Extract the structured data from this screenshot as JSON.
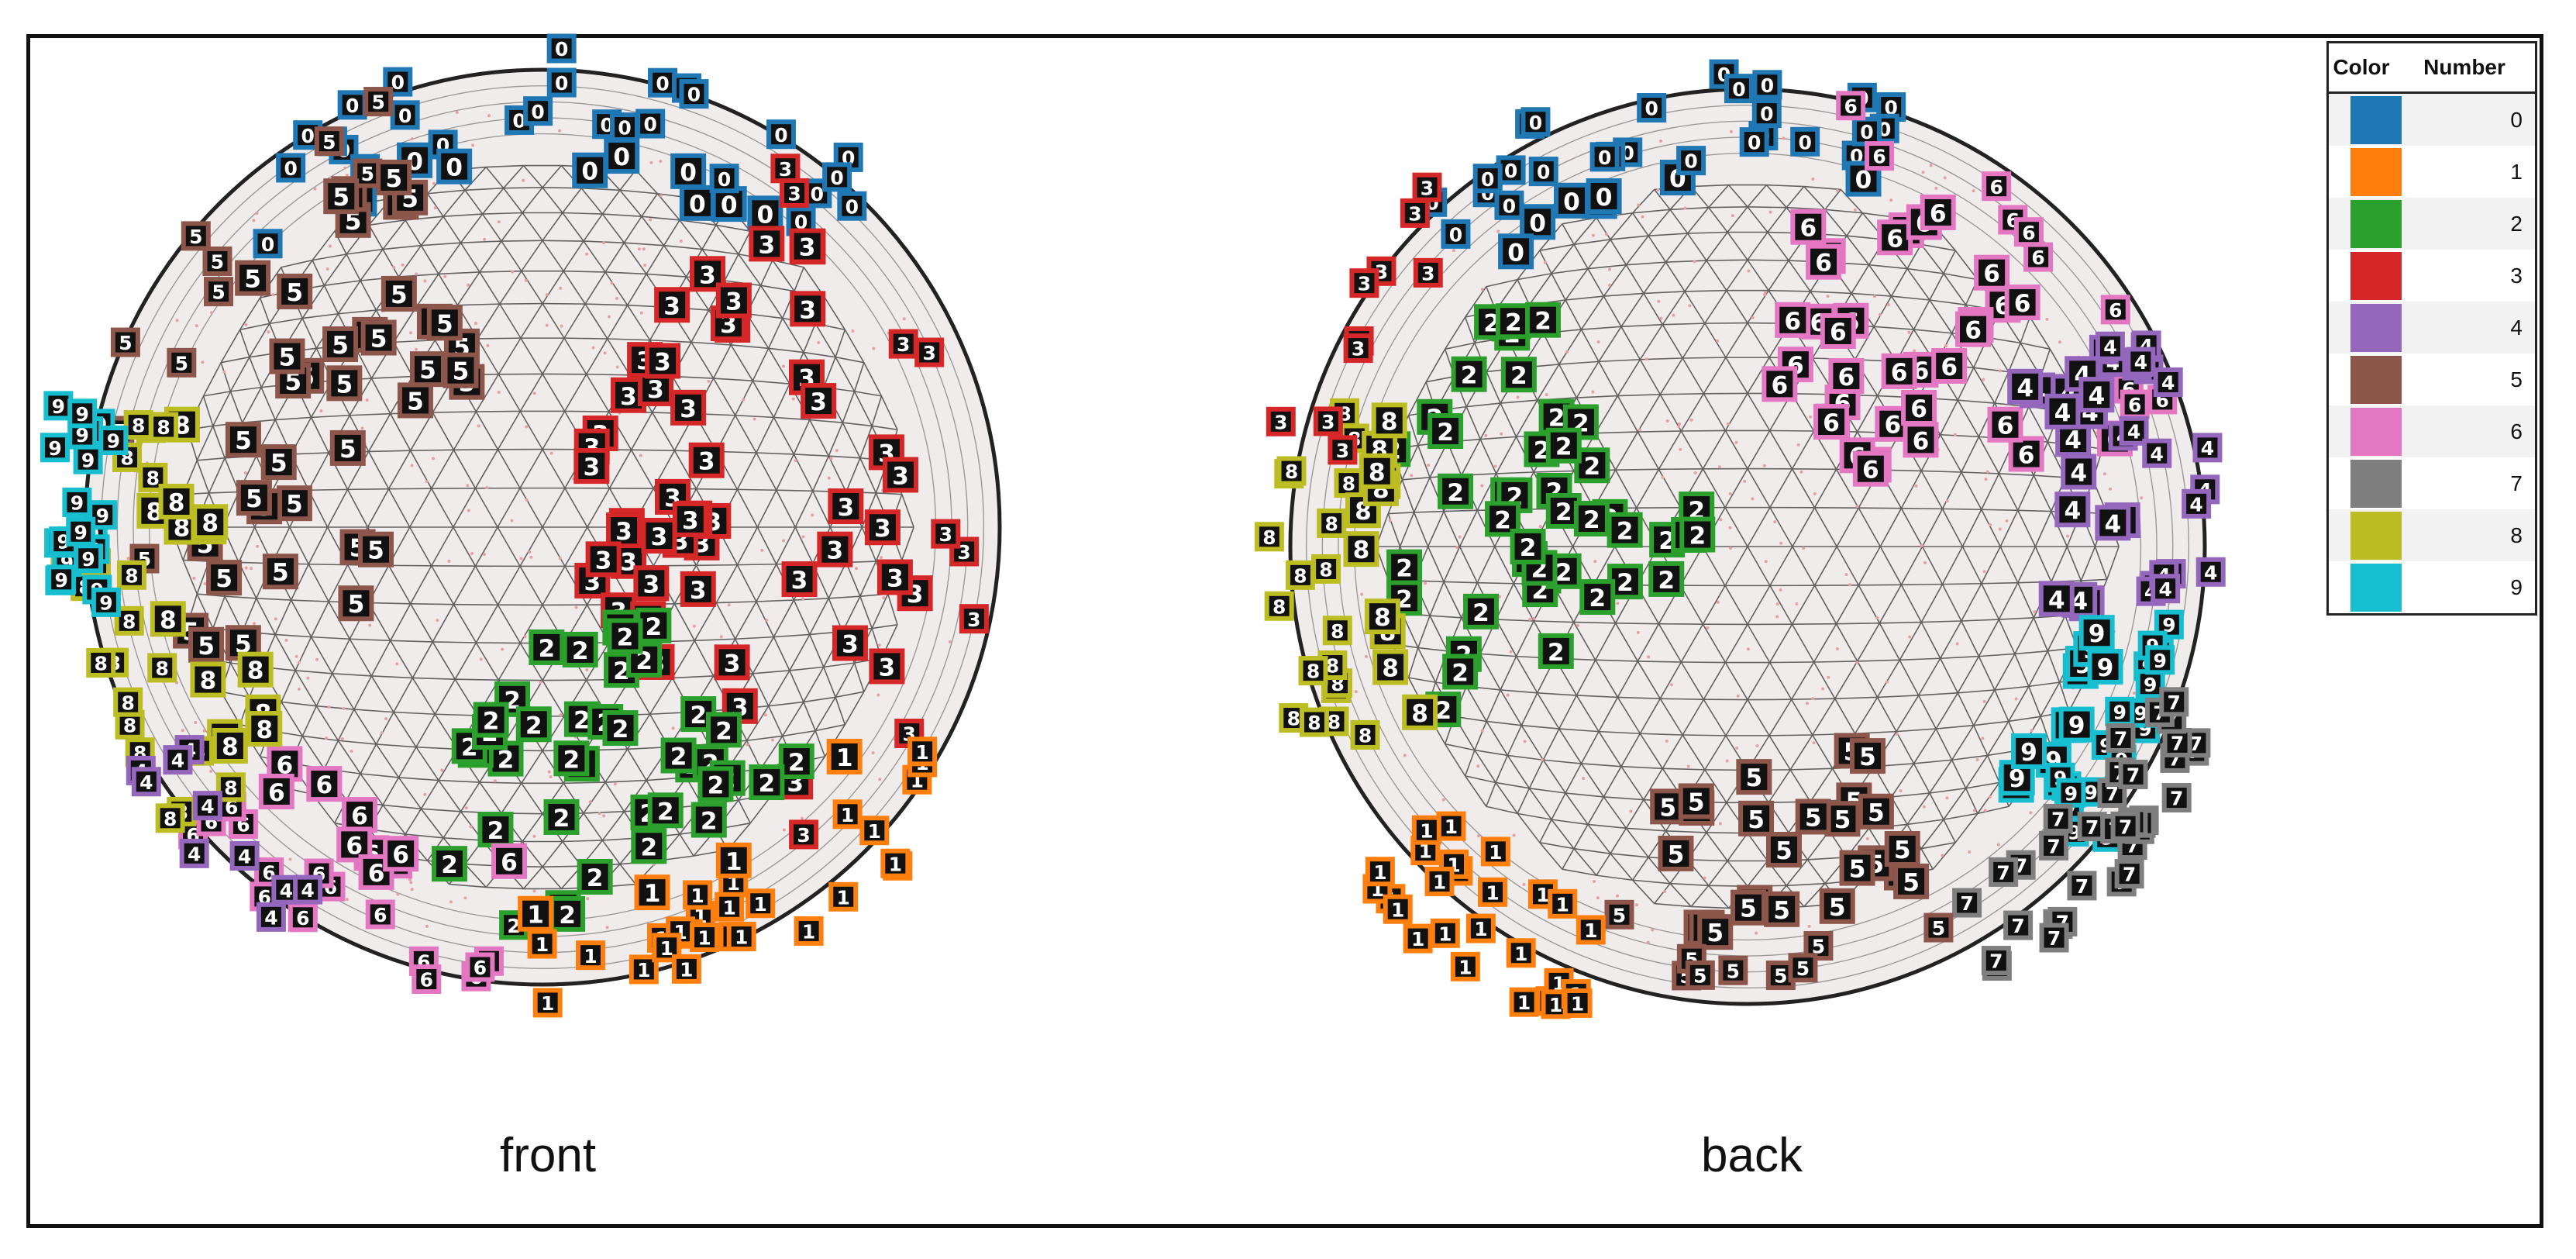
{
  "labels": {
    "front": "front",
    "back": "back"
  },
  "legend": {
    "header_color": "Color",
    "header_number": "Number",
    "entries": [
      {
        "number": "0",
        "color": "#1f77b4"
      },
      {
        "number": "1",
        "color": "#ff7f0e"
      },
      {
        "number": "2",
        "color": "#2ca02c"
      },
      {
        "number": "3",
        "color": "#d62728"
      },
      {
        "number": "4",
        "color": "#9467bd"
      },
      {
        "number": "5",
        "color": "#8c564b"
      },
      {
        "number": "6",
        "color": "#e377c2"
      },
      {
        "number": "7",
        "color": "#7f7f7f"
      },
      {
        "number": "8",
        "color": "#bcbd22"
      },
      {
        "number": "9",
        "color": "#17becf"
      }
    ]
  },
  "spheres": [
    {
      "view": "front",
      "regions": [
        {
          "digit": "0",
          "count": 36
        },
        {
          "digit": "5",
          "count": 48
        },
        {
          "digit": "3",
          "count": 60
        },
        {
          "digit": "2",
          "count": 40
        },
        {
          "digit": "6",
          "count": 26
        },
        {
          "digit": "1",
          "count": 30
        },
        {
          "digit": "8",
          "count": 34
        },
        {
          "digit": "9",
          "count": 22
        },
        {
          "digit": "4",
          "count": 10
        }
      ]
    },
    {
      "view": "back",
      "regions": [
        {
          "digit": "0",
          "count": 34
        },
        {
          "digit": "6",
          "count": 44
        },
        {
          "digit": "2",
          "count": 44
        },
        {
          "digit": "4",
          "count": 36
        },
        {
          "digit": "9",
          "count": 30
        },
        {
          "digit": "7",
          "count": 34
        },
        {
          "digit": "5",
          "count": 34
        },
        {
          "digit": "1",
          "count": 26
        },
        {
          "digit": "8",
          "count": 30
        },
        {
          "digit": "3",
          "count": 10
        }
      ]
    }
  ]
}
